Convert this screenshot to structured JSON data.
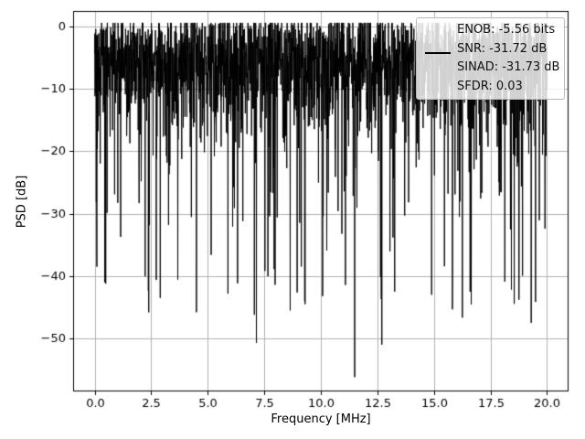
{
  "chart_data": {
    "type": "line",
    "title": "",
    "xlabel": "Frequency [MHz]",
    "ylabel": "PSD [dB]",
    "xlim": [
      -0.95,
      20.95
    ],
    "ylim": [
      -58.5,
      2.5
    ],
    "grid": true,
    "line_color": "#000000",
    "grid_color": "#b0b0b0",
    "x_ticks": [
      0.0,
      2.5,
      5.0,
      7.5,
      10.0,
      12.5,
      15.0,
      17.5,
      20.0
    ],
    "x_tick_labels": [
      "0.0",
      "2.5",
      "5.0",
      "7.5",
      "10.0",
      "12.5",
      "15.0",
      "17.5",
      "20.0"
    ],
    "y_ticks": [
      0,
      -10,
      -20,
      -30,
      -40,
      -50
    ],
    "y_tick_labels": [
      "0",
      "−10",
      "−20",
      "−30",
      "−40",
      "−50"
    ],
    "legend": {
      "position": "upper right",
      "lines": [
        "ENOB: -5.56 bits",
        "SNR: -31.72 dB",
        "SINAD: -31.73 dB",
        "SFDR: 0.03"
      ]
    },
    "stats": {
      "enob_bits": -5.56,
      "snr_db": -31.72,
      "sinad_db": -31.73,
      "sfdr": 0.03
    },
    "series_description": "Broadband noise-like power spectral density spanning 0–20 MHz; dense band between about -3 dB and -25 dB with frequent downward spikes to -30…-47 dB and occasional peaks near 0 dB.",
    "noise_model": {
      "seed": 42,
      "samples": 2400,
      "x_start": 0,
      "x_end": 20,
      "offset_db": -4,
      "deep_prob": 0.032,
      "deep_base_db": -25,
      "deep_extra_db": 22,
      "cap_db": 0.6,
      "floor_db": -57.5
    },
    "notable_maxima": [
      [
        8.1,
        0.5
      ],
      [
        12.85,
        0.4
      ],
      [
        0.05,
        -0.4
      ]
    ],
    "notable_minima": [
      [
        0.1,
        -38.5
      ],
      [
        0.45,
        -41.0
      ],
      [
        2.9,
        -43.5
      ],
      [
        4.5,
        -45.8
      ],
      [
        7.15,
        -50.7
      ],
      [
        9.3,
        -44.5
      ],
      [
        11.5,
        -56.2
      ],
      [
        12.7,
        -51.0
      ],
      [
        14.9,
        -43.0
      ],
      [
        16.6,
        -42.5
      ],
      [
        19.3,
        -47.5
      ]
    ]
  }
}
